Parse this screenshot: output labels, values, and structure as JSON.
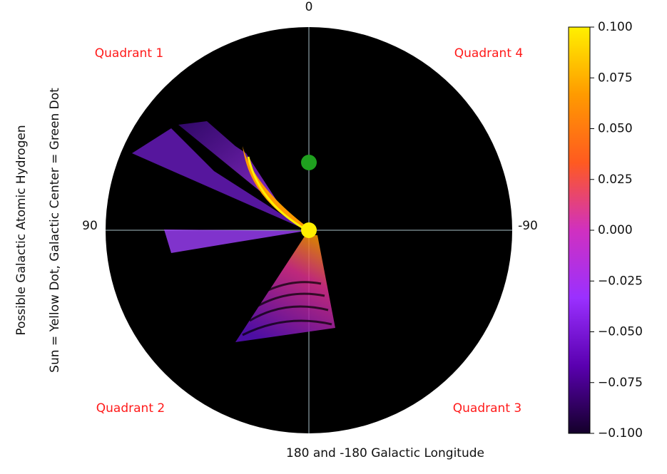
{
  "chart_data": {
    "type": "polar",
    "xlabel": "180 and -180 Galactic Longitude",
    "ylabel": [
      "Possible Galactic Atomic Hydrogen",
      "Sun = Yellow Dot, Galactic Center = Green Dot"
    ],
    "thetaticks": [
      0,
      90,
      -90
    ],
    "grid": true,
    "annotations": [
      "Quadrant 1",
      "Quadrant 4",
      "Quadrant 2",
      "Quadrant 3"
    ],
    "background": "#000000",
    "colorbar": {
      "lim": [
        -0.1,
        0.1
      ],
      "ticks": [
        {
          "value": 0.1,
          "label": "0.100"
        },
        {
          "value": 0.075,
          "label": "0.075"
        },
        {
          "value": 0.05,
          "label": "0.050"
        },
        {
          "value": 0.025,
          "label": "0.025"
        },
        {
          "value": 0,
          "label": "0.000"
        },
        {
          "value": -0.025,
          "label": "−0.025"
        },
        {
          "value": -0.05,
          "label": "−0.050"
        },
        {
          "value": -0.075,
          "label": "−0.075"
        },
        {
          "value": -0.1,
          "label": "−0.100"
        }
      ],
      "colors": [
        "#14002a",
        "#5a00b0",
        "#9a30ff",
        "#d030c0",
        "#ff5a20",
        "#ff9a00",
        "#fff000"
      ]
    }
  }
}
